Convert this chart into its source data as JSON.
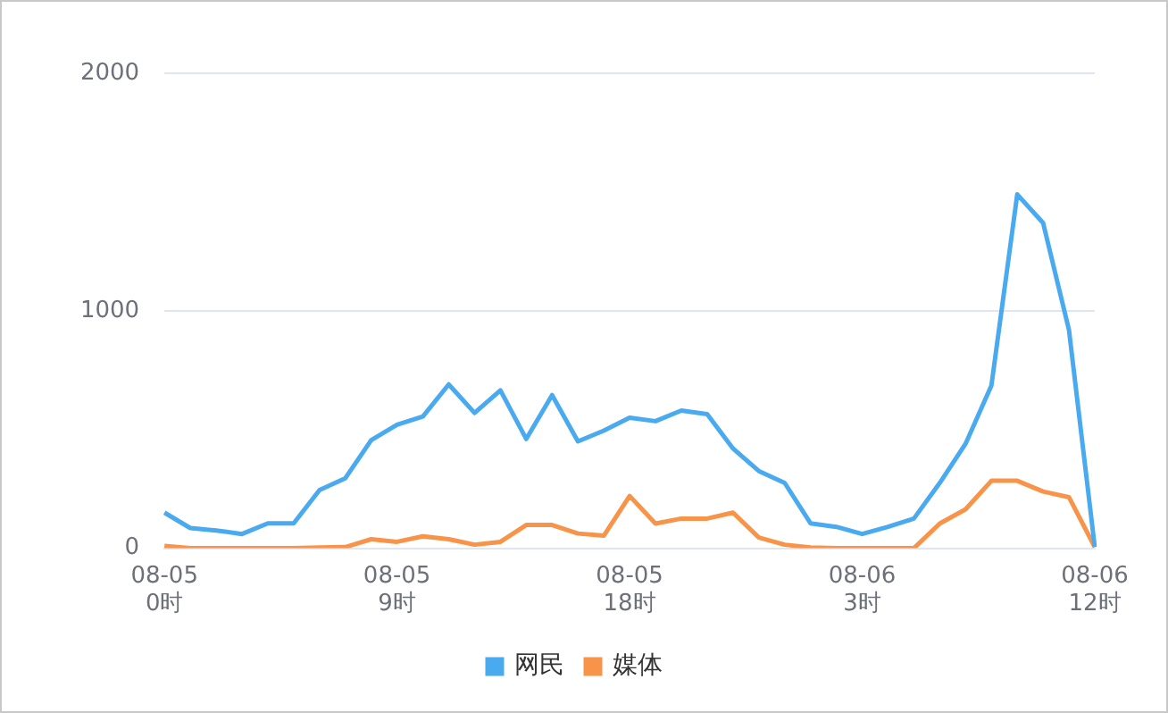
{
  "chart_data": {
    "type": "line",
    "categories": [
      "08-05 0时",
      null,
      null,
      null,
      null,
      null,
      null,
      null,
      null,
      "08-05 9时",
      null,
      null,
      null,
      null,
      null,
      null,
      null,
      null,
      "08-05 18时",
      null,
      null,
      null,
      null,
      null,
      null,
      null,
      null,
      "08-06 3时",
      null,
      null,
      null,
      null,
      null,
      null,
      null,
      null,
      "08-06 12时"
    ],
    "series": [
      {
        "name": "网民",
        "color": "#4aaaf0",
        "values": [
          150,
          85,
          75,
          60,
          105,
          105,
          245,
          295,
          455,
          520,
          555,
          690,
          570,
          665,
          460,
          645,
          450,
          495,
          550,
          535,
          580,
          565,
          420,
          325,
          275,
          105,
          90,
          60,
          90,
          125,
          275,
          440,
          685,
          1490,
          1370,
          920,
          5
        ]
      },
      {
        "name": "媒体",
        "color": "#f7944a",
        "values": [
          10,
          0,
          0,
          0,
          0,
          0,
          3,
          5,
          38,
          27,
          50,
          38,
          15,
          27,
          98,
          98,
          62,
          53,
          220,
          104,
          125,
          125,
          150,
          45,
          15,
          3,
          0,
          0,
          0,
          0,
          104,
          164,
          284,
          284,
          239,
          215,
          5
        ]
      }
    ],
    "ylim": [
      0,
      2000
    ],
    "yticks": [
      0,
      1000,
      2000
    ],
    "grid": "y",
    "legend": "bottom",
    "marker": "none",
    "line_style": "solid"
  }
}
